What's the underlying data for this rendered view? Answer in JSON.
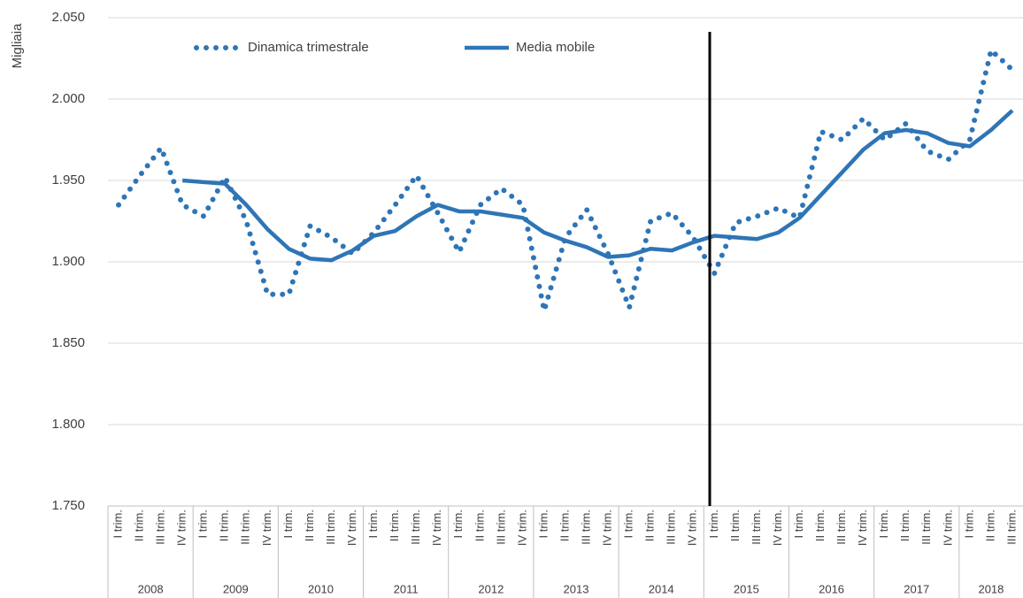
{
  "chart_data": {
    "type": "line",
    "y_label": "Migliaia",
    "categories": [
      "I trim.",
      "II trim.",
      "III trim.",
      "IV trim.",
      "I trim.",
      "II trim.",
      "III trim.",
      "IV trim.",
      "I trim.",
      "II trim.",
      "III trim.",
      "IV trim.",
      "I trim.",
      "II trim.",
      "III trim.",
      "IV trim.",
      "I trim.",
      "II trim.",
      "III trim.",
      "IV trim.",
      "I trim.",
      "II trim.",
      "III trim.",
      "IV trim.",
      "I trim.",
      "II trim.",
      "III trim.",
      "IV trim.",
      "I trim.",
      "II trim.",
      "III trim.",
      "IV trim.",
      "I trim.",
      "II trim.",
      "III trim.",
      "IV trim.",
      "I trim.",
      "II trim.",
      "III trim.",
      "IV trim.",
      "I trim.",
      "II trim.",
      "III trim."
    ],
    "years": [
      "2008",
      "2009",
      "2010",
      "2011",
      "2012",
      "2013",
      "2014",
      "2015",
      "2016",
      "2017",
      "2018"
    ],
    "series": [
      {
        "name": "Dinamica trimestrale",
        "color": "#2e75b6",
        "style": "dotted",
        "values": [
          1935,
          1953,
          1970,
          1935,
          1928,
          1952,
          1925,
          1880,
          1880,
          1922,
          1915,
          1905,
          1918,
          1935,
          1953,
          1930,
          1906,
          1935,
          1945,
          1935,
          1870,
          1915,
          1932,
          1905,
          1872,
          1925,
          1930,
          1915,
          1893,
          1924,
          1928,
          1933,
          1927,
          1980,
          1975,
          1988,
          1975,
          1985,
          1968,
          1963,
          1975,
          2030,
          2018
        ]
      },
      {
        "name": "Media mobile",
        "color": "#2e75b6",
        "style": "solid",
        "values": [
          null,
          null,
          null,
          1950,
          1949,
          1948,
          1935,
          1920,
          1908,
          1902,
          1901,
          1907,
          1916,
          1919,
          1928,
          1935,
          1931,
          1931,
          1929,
          1927,
          1918,
          1913,
          1909,
          1903,
          1904,
          1908,
          1907,
          1912,
          1916,
          1915,
          1914,
          1918,
          1927,
          1941,
          1955,
          1969,
          1979,
          1981,
          1979,
          1973,
          1971,
          1981,
          1993
        ]
      }
    ],
    "ylim": [
      1750,
      2050
    ],
    "yticks": [
      {
        "value": 1750,
        "label": "1.750"
      },
      {
        "value": 1800,
        "label": "1.800"
      },
      {
        "value": 1850,
        "label": "1.850"
      },
      {
        "value": 1900,
        "label": "1.900"
      },
      {
        "value": 1950,
        "label": "1.950"
      },
      {
        "value": 2000,
        "label": "2.000"
      },
      {
        "value": 2050,
        "label": "2.050"
      }
    ],
    "grid": true,
    "legend": "top"
  }
}
